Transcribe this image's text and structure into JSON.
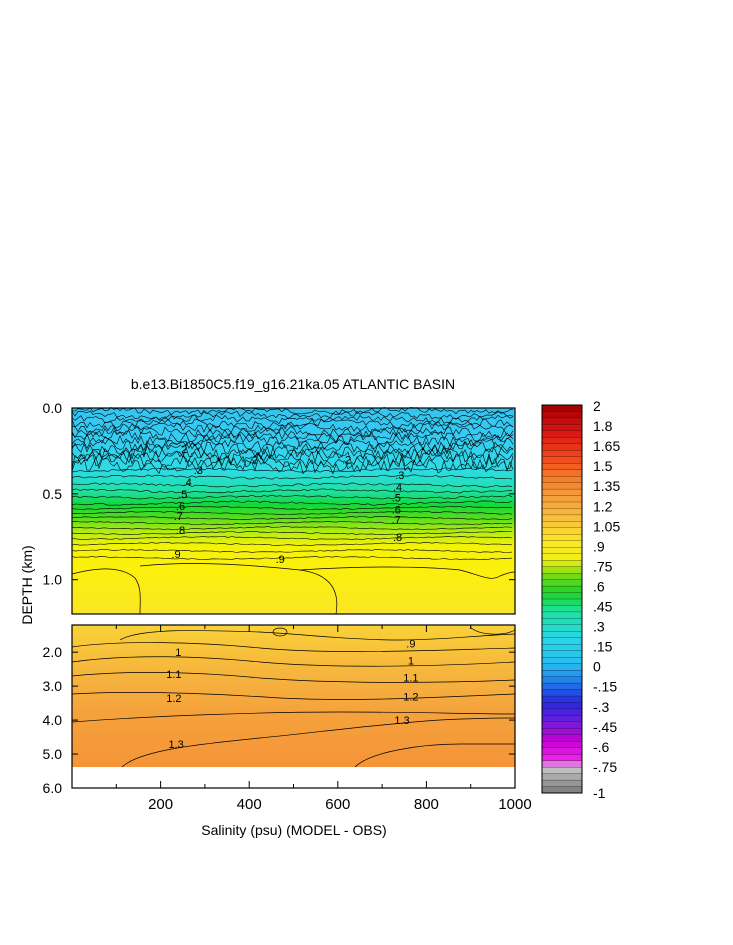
{
  "chart_data": {
    "type": "heatmap",
    "title": "b.e13.Bi1850C5.f19_g16.21ka.05 ATLANTIC BASIN",
    "xlabel": "Salinity (psu) (MODEL - OBS)",
    "ylabel": "DEPTH (km)",
    "x_ticks": [
      "200",
      "400",
      "600",
      "800",
      "1000"
    ],
    "x_tick_values": [
      200,
      400,
      600,
      800,
      1000
    ],
    "xlim": [
      0,
      1000
    ],
    "upper_panel": {
      "ylim": [
        0.0,
        1.2
      ],
      "y_ticks": [
        "0.0",
        "0.5",
        "1.0"
      ],
      "y_tick_values": [
        0.0,
        0.5,
        1.0
      ]
    },
    "lower_panel": {
      "ylim": [
        1.2,
        6.0
      ],
      "y_ticks": [
        "2.0",
        "3.0",
        "4.0",
        "5.0",
        "6.0"
      ],
      "y_tick_values": [
        2.0,
        3.0,
        4.0,
        5.0,
        6.0
      ]
    },
    "upper_contour_labels": [
      {
        "text": ".2",
        "x": 250,
        "depth": 0.24
      },
      {
        "text": ".2",
        "x": 620,
        "depth": 0.3
      },
      {
        "text": ".3",
        "x": 285,
        "depth": 0.36
      },
      {
        "text": ".4",
        "x": 260,
        "depth": 0.43
      },
      {
        "text": ".5",
        "x": 250,
        "depth": 0.5
      },
      {
        "text": ".6",
        "x": 245,
        "depth": 0.57
      },
      {
        "text": ".7",
        "x": 240,
        "depth": 0.63
      },
      {
        "text": ".8",
        "x": 245,
        "depth": 0.71
      },
      {
        "text": ".9",
        "x": 235,
        "depth": 0.85
      },
      {
        "text": ".9",
        "x": 470,
        "depth": 0.88
      },
      {
        "text": ".2",
        "x": 1030,
        "depth": 0.3
      },
      {
        "text": ".3",
        "x": 740,
        "depth": 0.39
      },
      {
        "text": ".4",
        "x": 735,
        "depth": 0.46
      },
      {
        "text": ".5",
        "x": 732,
        "depth": 0.52
      },
      {
        "text": ".6",
        "x": 732,
        "depth": 0.59
      },
      {
        "text": ".7",
        "x": 732,
        "depth": 0.65
      },
      {
        "text": ".8",
        "x": 735,
        "depth": 0.75
      }
    ],
    "lower_contour_labels": [
      {
        "text": "1",
        "x": 240,
        "depth": 2.0
      },
      {
        "text": "1.1",
        "x": 230,
        "depth": 2.65
      },
      {
        "text": "1.2",
        "x": 230,
        "depth": 3.35
      },
      {
        "text": "1.3",
        "x": 235,
        "depth": 4.7
      },
      {
        "text": ".9",
        "x": 765,
        "depth": 1.75
      },
      {
        "text": "1",
        "x": 765,
        "depth": 2.25
      },
      {
        "text": "1.1",
        "x": 765,
        "depth": 2.75
      },
      {
        "text": "1.2",
        "x": 765,
        "depth": 3.3
      },
      {
        "text": "1.3",
        "x": 745,
        "depth": 4.0
      }
    ],
    "colorbar": {
      "labels": [
        "2",
        "1.8",
        "1.65",
        "1.5",
        "1.35",
        "1.2",
        "1.05",
        ".9",
        ".75",
        ".6",
        ".45",
        ".3",
        ".15",
        "0",
        "-.15",
        "-.3",
        "-.45",
        "-.6",
        "-.75",
        "-1"
      ],
      "label_values": [
        2,
        1.8,
        1.65,
        1.5,
        1.35,
        1.2,
        1.05,
        0.9,
        0.75,
        0.6,
        0.45,
        0.3,
        0.15,
        0,
        -0.15,
        -0.3,
        -0.45,
        -0.6,
        -0.75,
        -1
      ],
      "range": [
        -1,
        2
      ]
    },
    "colors": {
      "field_shallow": "#33c8f2",
      "field_mid": "#18d31c",
      "field_yellow": "#fcf20a",
      "field_orange": "#f59a3c"
    }
  }
}
